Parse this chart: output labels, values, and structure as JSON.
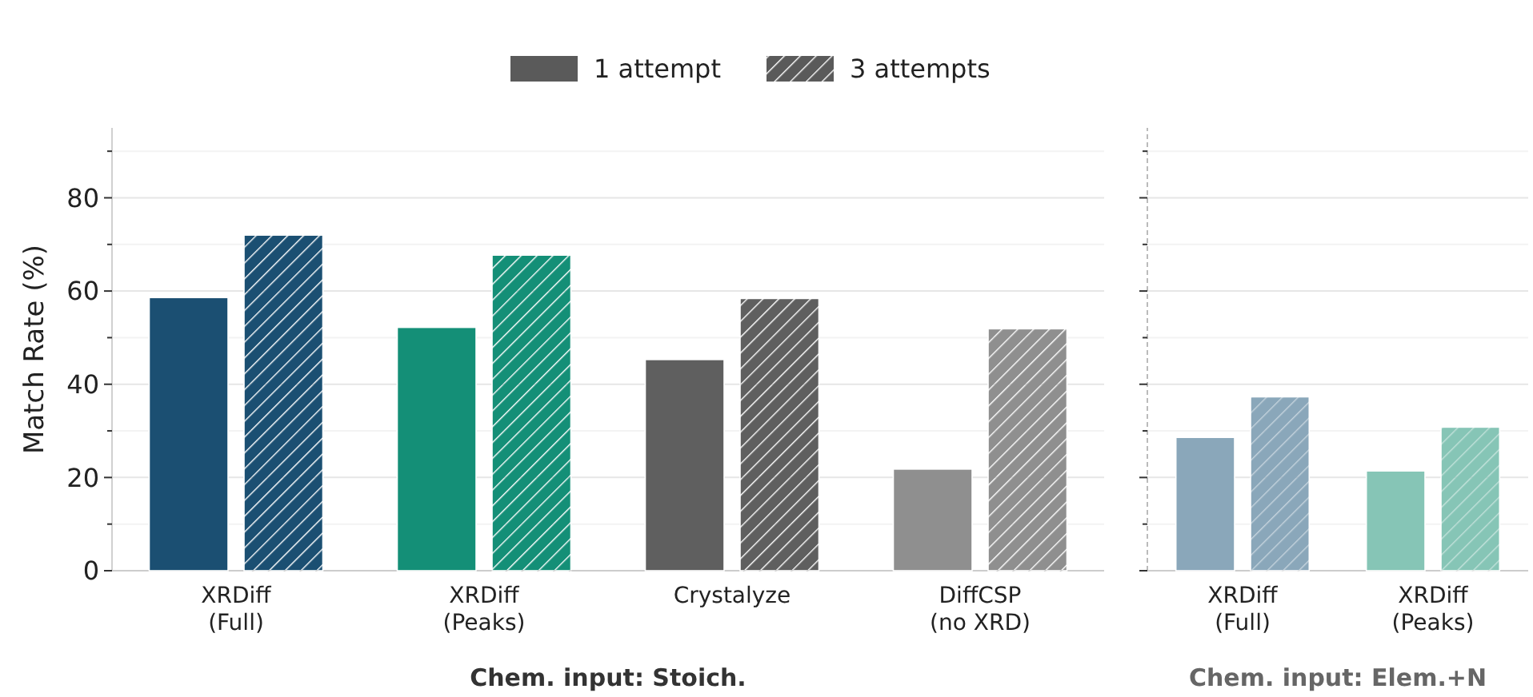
{
  "chart_data": [
    {
      "type": "bar",
      "ylabel": "Match Rate (%)",
      "xlabel": "Chem. input: Stoich.",
      "categories": [
        "XRDiff\n(Full)",
        "XRDiff\n(Peaks)",
        "Crystalyze",
        "DiffCSP\n(no XRD)"
      ],
      "series": [
        {
          "name": "1 attempt",
          "color": "#5a5a5a",
          "colors": [
            "#1b4f72",
            "#148f77",
            "#5f5f5f",
            "#8f8f8f"
          ],
          "values": [
            58.6,
            52.2,
            45.3,
            21.8
          ]
        },
        {
          "name": "3 attempts",
          "color": "#5a5a5a",
          "colors": [
            "#1b4f72",
            "#148f77",
            "#5f5f5f",
            "#8f8f8f"
          ],
          "values": [
            72.0,
            67.7,
            58.4,
            51.9
          ]
        }
      ],
      "ylim": [
        0,
        95
      ],
      "yticks": [
        0,
        {
          "value": 10,
          "label": null
        },
        20,
        {
          "value": 30,
          "label": null
        },
        40,
        {
          "value": 50,
          "label": null
        },
        60,
        {
          "value": 70,
          "label": null
        },
        80,
        {
          "value": 90,
          "label": null
        }
      ],
      "grid": "y",
      "legend": "top"
    },
    {
      "type": "bar",
      "xlabel": "Chem. input: Elem.+N",
      "categories": [
        "XRDiff\n(Full)",
        "XRDiff\n(Peaks)"
      ],
      "series": [
        {
          "colors": [
            "#8aa7ba",
            "#86c5b6"
          ],
          "values": [
            28.6,
            21.4
          ]
        },
        {
          "colors": [
            "#8aa7ba",
            "#86c5b6"
          ],
          "values": [
            37.3,
            30.8
          ]
        }
      ],
      "ylim": [
        0,
        95
      ],
      "yticks": [
        0,
        {
          "value": 10,
          "label": null
        },
        20,
        {
          "value": 30,
          "label": null
        },
        40,
        {
          "value": 50,
          "label": null
        },
        60,
        {
          "value": 70,
          "label": null
        },
        80,
        {
          "value": 90,
          "label": null
        }
      ],
      "grid": "y",
      "tick_labels": "x"
    }
  ]
}
